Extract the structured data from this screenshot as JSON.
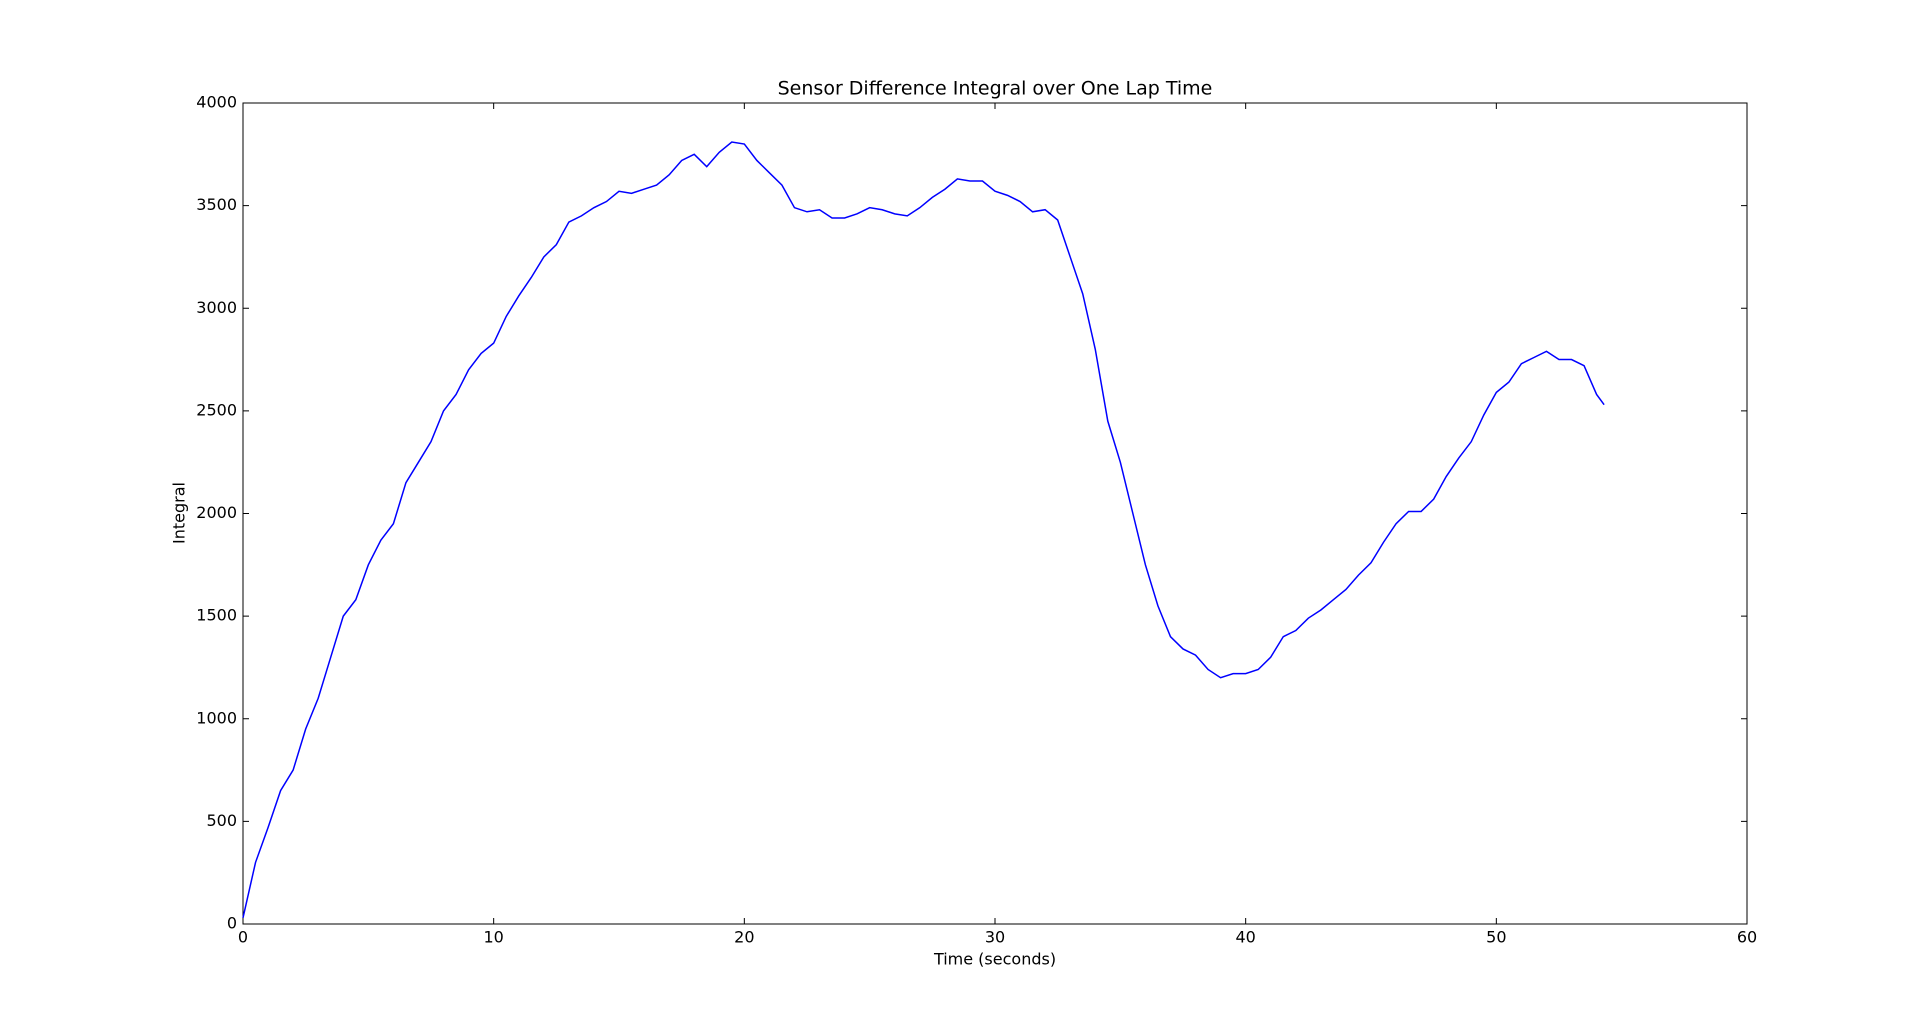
{
  "chart_data": {
    "type": "line",
    "title": "Sensor Difference Integral over One Lap Time",
    "x_label": "Time (seconds)",
    "y_label": "Integral",
    "x": [
      0,
      0.5,
      1,
      1.5,
      2,
      2.5,
      3,
      3.5,
      4,
      4.5,
      5,
      5.5,
      6,
      6.5,
      7,
      7.5,
      8,
      8.5,
      9,
      9.5,
      10,
      10.5,
      11,
      11.5,
      12,
      12.5,
      13,
      13.5,
      14,
      14.5,
      15,
      15.5,
      16,
      16.5,
      17,
      17.5,
      18,
      18.5,
      19,
      19.5,
      20,
      20.5,
      21,
      21.5,
      22,
      22.5,
      23,
      23.5,
      24,
      24.5,
      25,
      25.5,
      26,
      26.5,
      27,
      27.5,
      28,
      28.5,
      29,
      29.5,
      30,
      30.5,
      31,
      31.5,
      32,
      32.5,
      33,
      33.5,
      34,
      34.5,
      35,
      35.5,
      36,
      36.5,
      37,
      37.5,
      38,
      38.5,
      39,
      39.5,
      40,
      40.5,
      41,
      41.5,
      42,
      42.5,
      43,
      43.5,
      44,
      44.5,
      45,
      45.5,
      46,
      46.5,
      47,
      47.5,
      48,
      48.5,
      49,
      49.5,
      50,
      50.5,
      51,
      51.5,
      52,
      52.5,
      53,
      53.5,
      54,
      54.3
    ],
    "series": [
      {
        "color": "#0000ff",
        "values": [
          30,
          300,
          470,
          650,
          750,
          950,
          1100,
          1300,
          1500,
          1580,
          1750,
          1870,
          1950,
          2150,
          2250,
          2350,
          2500,
          2580,
          2700,
          2780,
          2830,
          2960,
          3060,
          3150,
          3250,
          3310,
          3420,
          3450,
          3490,
          3520,
          3570,
          3560,
          3580,
          3600,
          3650,
          3720,
          3750,
          3690,
          3760,
          3810,
          3800,
          3720,
          3660,
          3600,
          3490,
          3470,
          3480,
          3440,
          3440,
          3460,
          3490,
          3480,
          3460,
          3450,
          3490,
          3540,
          3580,
          3630,
          3620,
          3620,
          3570,
          3550,
          3520,
          3470,
          3480,
          3430,
          3250,
          3070,
          2800,
          2450,
          2250,
          2000,
          1750,
          1550,
          1400,
          1340,
          1310,
          1240,
          1200,
          1220,
          1220,
          1240,
          1300,
          1400,
          1430,
          1490,
          1530,
          1580,
          1630,
          1700,
          1760,
          1860,
          1950,
          2010,
          2010,
          2070,
          2180,
          2270,
          2350,
          2480,
          2590,
          2640,
          2730,
          2760,
          2790,
          2750,
          2750,
          2720,
          2580,
          2530
        ]
      }
    ],
    "xlim": [
      0,
      60
    ],
    "xticks": [
      0,
      10,
      20,
      30,
      40,
      50,
      60
    ],
    "ylim": [
      0,
      4000
    ],
    "yticks": [
      0,
      500,
      1000,
      1500,
      2000,
      2500,
      3000,
      3500,
      4000
    ]
  }
}
